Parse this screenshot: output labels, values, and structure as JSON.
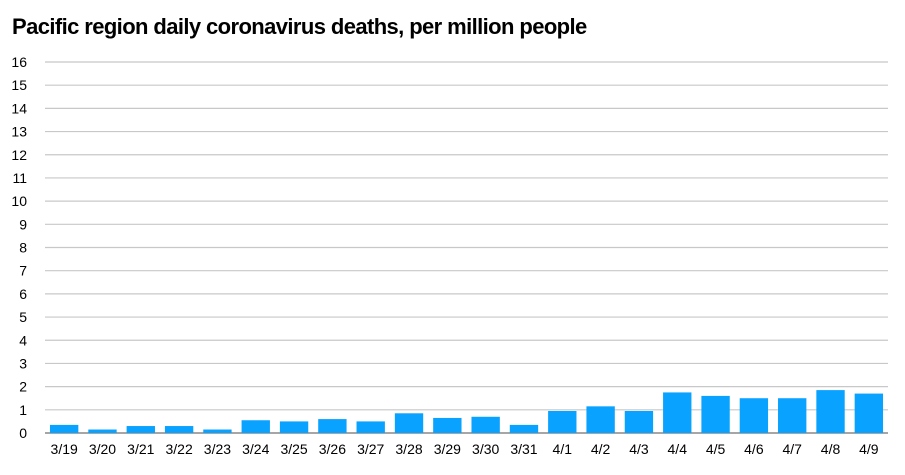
{
  "chart_data": {
    "type": "bar",
    "title": "Pacific region daily coronavirus deaths, per million people",
    "xlabel": "",
    "ylabel": "",
    "categories": [
      "3/19",
      "3/20",
      "3/21",
      "3/22",
      "3/23",
      "3/24",
      "3/25",
      "3/26",
      "3/27",
      "3/28",
      "3/29",
      "3/30",
      "3/31",
      "4/1",
      "4/2",
      "4/3",
      "4/4",
      "4/5",
      "4/6",
      "4/7",
      "4/8",
      "4/9"
    ],
    "values": [
      0.35,
      0.15,
      0.3,
      0.3,
      0.15,
      0.55,
      0.5,
      0.6,
      0.5,
      0.85,
      0.65,
      0.7,
      0.35,
      0.95,
      1.15,
      0.95,
      1.75,
      1.6,
      1.5,
      1.5,
      1.85,
      1.7
    ],
    "ylim": [
      0,
      16
    ],
    "yticks": [
      0,
      1,
      2,
      3,
      4,
      5,
      6,
      7,
      8,
      9,
      10,
      11,
      12,
      13,
      14,
      15,
      16
    ],
    "grid": true,
    "legend": "none",
    "colors": {
      "bar": "#0aa2ff",
      "grid": "#c8c8c8",
      "axis": "#888888"
    }
  }
}
